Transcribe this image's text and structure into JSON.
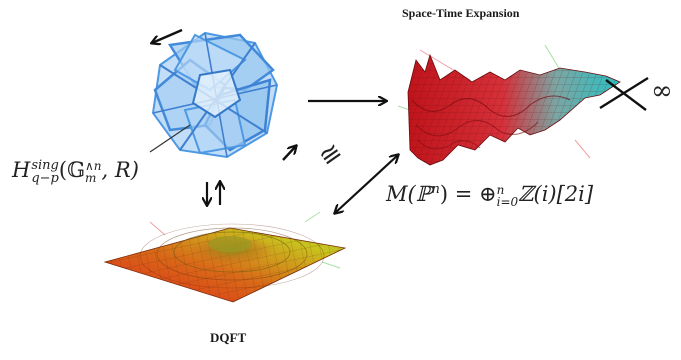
{
  "titles": {
    "top_right": "Space-Time Expansion",
    "bottom": "DQFT"
  },
  "formula_left": {
    "base": "H",
    "sup": "sing",
    "sub": "q−p",
    "arg_open": "(",
    "arg_G": "𝔾",
    "arg_G_sup": "∧n",
    "arg_G_sub": "m",
    "arg_rest": ", R)"
  },
  "formula_right": {
    "lhs": "M(ℙ",
    "lhs_sup": "n",
    "lhs_close": ")",
    "eq": " = ⊕",
    "op_sup": "n",
    "op_sub": "i=0",
    "rhs": "ℤ(i)[2i]"
  },
  "symbols": {
    "infinity": "∞",
    "approx": "≅"
  },
  "colors": {
    "crystal_blue": "#3b8fe0",
    "surface_red": "#d42a1e",
    "surface_yellow": "#c9c21c",
    "surface_teal": "#2bb3b8",
    "arrow": "#111111"
  }
}
